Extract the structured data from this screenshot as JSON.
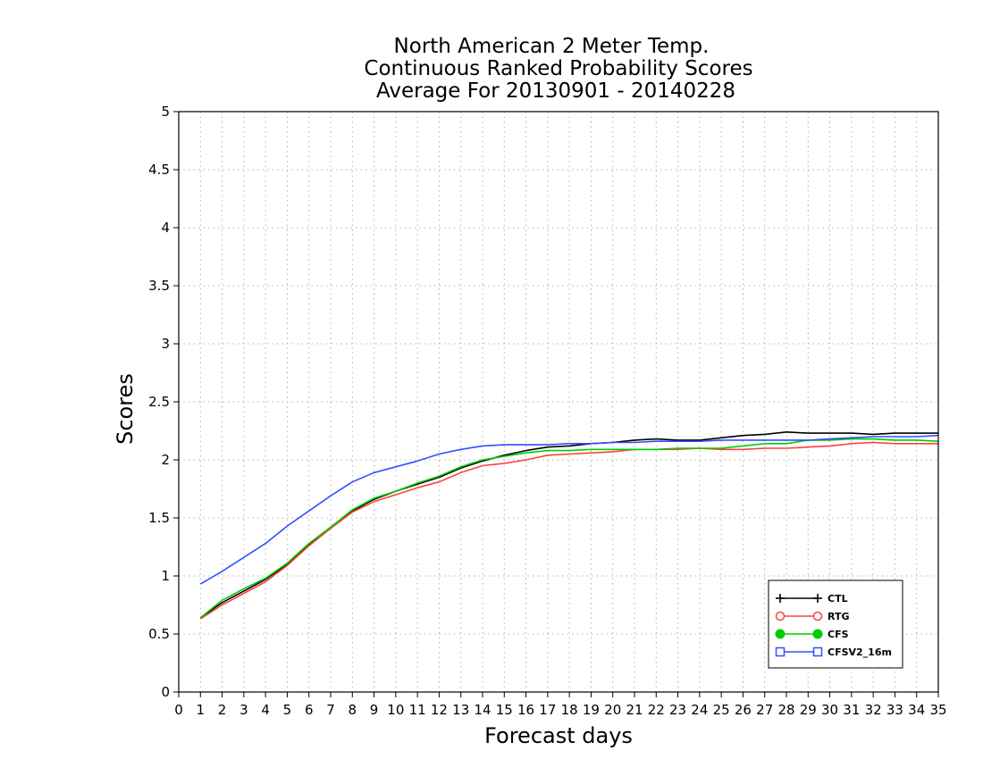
{
  "chart_data": {
    "type": "line",
    "title": [
      "North American 2 Meter Temp.",
      "Continuous Ranked Probability Scores",
      "Average For 20130901 - 20140228"
    ],
    "xlabel": "Forecast days",
    "ylabel": "Scores",
    "xlim": [
      0,
      35
    ],
    "ylim": [
      0,
      5
    ],
    "x_ticks": [
      0,
      1,
      2,
      3,
      4,
      5,
      6,
      7,
      8,
      9,
      10,
      11,
      12,
      13,
      14,
      15,
      16,
      17,
      18,
      19,
      20,
      21,
      22,
      23,
      24,
      25,
      26,
      27,
      28,
      29,
      30,
      31,
      32,
      33,
      34,
      35
    ],
    "x_tick_labels": [
      "0",
      "1",
      "2",
      "3",
      "4",
      "5",
      "6",
      "7",
      "8",
      "9",
      "10",
      "11",
      "12",
      "13",
      "14",
      "15",
      "16",
      "17",
      "18",
      "19",
      "20",
      "21",
      "22",
      "23",
      "24",
      "25",
      "26",
      "27",
      "28",
      "29",
      "30",
      "31",
      "32",
      "33",
      "34",
      "35"
    ],
    "y_ticks": [
      0,
      0.5,
      1,
      1.5,
      2,
      2.5,
      3,
      3.5,
      4,
      4.5,
      5
    ],
    "y_tick_labels": [
      "0",
      "0.5",
      "1",
      "1.5",
      "2",
      "2.5",
      "3",
      "3.5",
      "4",
      "4.5",
      "5"
    ],
    "grid": true,
    "legend_position": "bottom-right",
    "x": [
      1,
      2,
      3,
      4,
      5,
      6,
      7,
      8,
      9,
      10,
      11,
      12,
      13,
      14,
      15,
      16,
      17,
      18,
      19,
      20,
      21,
      22,
      23,
      24,
      25,
      26,
      27,
      28,
      29,
      30,
      31,
      32,
      33,
      34,
      35
    ],
    "series": [
      {
        "name": "CTL",
        "color": "#000000",
        "marker": "plus",
        "values": [
          0.64,
          0.77,
          0.87,
          0.97,
          1.1,
          1.27,
          1.42,
          1.56,
          1.66,
          1.73,
          1.79,
          1.85,
          1.93,
          1.99,
          2.04,
          2.08,
          2.11,
          2.12,
          2.14,
          2.15,
          2.17,
          2.18,
          2.17,
          2.17,
          2.19,
          2.21,
          2.22,
          2.24,
          2.23,
          2.23,
          2.23,
          2.22,
          2.23,
          2.23,
          2.23
        ]
      },
      {
        "name": "RTG",
        "color": "#ff4040",
        "marker": "circle-open",
        "values": [
          0.63,
          0.75,
          0.85,
          0.95,
          1.09,
          1.26,
          1.41,
          1.55,
          1.64,
          1.7,
          1.76,
          1.81,
          1.89,
          1.95,
          1.97,
          2.0,
          2.04,
          2.05,
          2.06,
          2.07,
          2.09,
          2.09,
          2.09,
          2.1,
          2.09,
          2.09,
          2.1,
          2.1,
          2.11,
          2.12,
          2.14,
          2.15,
          2.14,
          2.14,
          2.14
        ]
      },
      {
        "name": "CFS",
        "color": "#00cc00",
        "marker": "circle-filled",
        "values": [
          0.64,
          0.79,
          0.89,
          0.98,
          1.11,
          1.28,
          1.42,
          1.57,
          1.67,
          1.73,
          1.8,
          1.86,
          1.94,
          2.0,
          2.03,
          2.06,
          2.08,
          2.08,
          2.09,
          2.09,
          2.09,
          2.09,
          2.1,
          2.1,
          2.1,
          2.12,
          2.14,
          2.14,
          2.17,
          2.17,
          2.18,
          2.18,
          2.17,
          2.17,
          2.16
        ]
      },
      {
        "name": "CFSV2_16m",
        "color": "#3050ff",
        "marker": "square-open",
        "values": [
          0.93,
          1.04,
          1.16,
          1.28,
          1.43,
          1.56,
          1.69,
          1.81,
          1.89,
          1.94,
          1.99,
          2.05,
          2.09,
          2.12,
          2.13,
          2.13,
          2.13,
          2.14,
          2.14,
          2.15,
          2.15,
          2.16,
          2.16,
          2.16,
          2.17,
          2.17,
          2.17,
          2.17,
          2.17,
          2.18,
          2.19,
          2.2,
          2.2,
          2.2,
          2.21
        ]
      }
    ]
  }
}
